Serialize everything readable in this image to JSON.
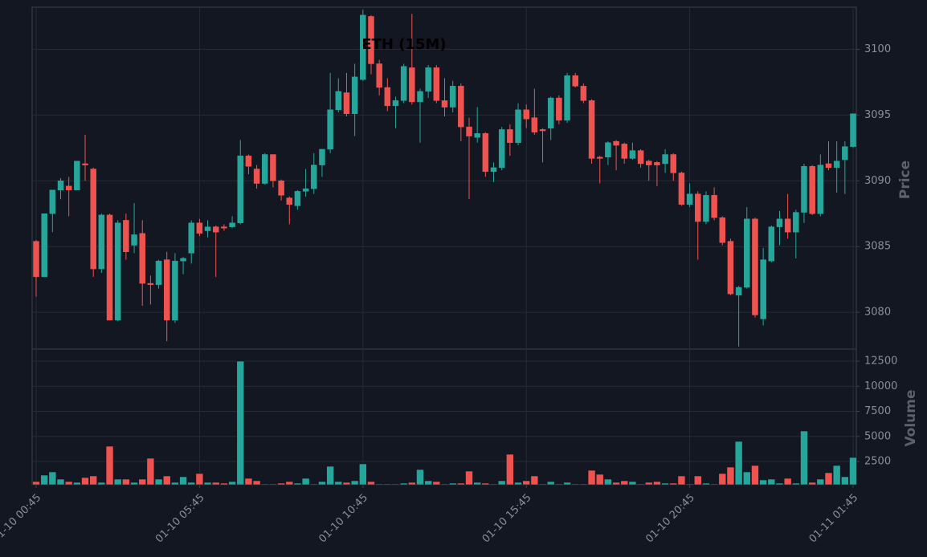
{
  "chart_data": {
    "type": "candlestick",
    "title": "ETH (15M)",
    "ylabel": "Price",
    "categories": [
      "01-10 00:45",
      null,
      null,
      null,
      null,
      null,
      null,
      null,
      null,
      null,
      null,
      null,
      null,
      null,
      null,
      null,
      null,
      null,
      null,
      null,
      "01-10 05:45",
      null,
      null,
      null,
      null,
      null,
      null,
      null,
      null,
      null,
      null,
      null,
      null,
      null,
      null,
      null,
      null,
      null,
      null,
      null,
      "01-10 10:45",
      null,
      null,
      null,
      null,
      null,
      null,
      null,
      null,
      null,
      null,
      null,
      null,
      null,
      null,
      null,
      null,
      null,
      null,
      null,
      "01-10 15:45",
      null,
      null,
      null,
      null,
      null,
      null,
      null,
      null,
      null,
      null,
      null,
      null,
      null,
      null,
      null,
      null,
      null,
      null,
      null,
      "01-10 20:45",
      null,
      null,
      null,
      null,
      null,
      null,
      null,
      null,
      null,
      null,
      null,
      null,
      null,
      null,
      null,
      null,
      null,
      null,
      null,
      "01-11 01:45"
    ],
    "open": [
      3085.4,
      3082.7,
      3087.5,
      3089.3,
      3089.6,
      3089.3,
      3091.3,
      3090.9,
      3083.3,
      3087.4,
      3079.4,
      3087.0,
      3085.1,
      3086.0,
      3082.2,
      3082.1,
      3084.0,
      3079.4,
      3083.9,
      3084.5,
      3086.8,
      3086.2,
      3086.5,
      3086.5,
      3086.5,
      3086.8,
      3091.9,
      3090.9,
      3089.8,
      3092.0,
      3090.0,
      3088.7,
      3088.1,
      3089.2,
      3089.4,
      3091.2,
      3092.4,
      3095.4,
      3096.7,
      3095.1,
      3097.7,
      3102.5,
      3098.9,
      3097.1,
      3095.7,
      3096.1,
      3098.6,
      3096.0,
      3096.8,
      3098.6,
      3096.1,
      3095.6,
      3097.2,
      3094.1,
      3093.3,
      3093.6,
      3090.7,
      3091.0,
      3093.9,
      3092.9,
      3095.4,
      3094.8,
      3093.9,
      3094.0,
      3096.3,
      3094.6,
      3098.0,
      3097.2,
      3096.1,
      3091.8,
      3091.8,
      3093.0,
      3092.8,
      3091.7,
      3092.3,
      3091.5,
      3091.4,
      3091.3,
      3092.0,
      3090.6,
      3088.2,
      3089.0,
      3086.9,
      3088.9,
      3087.2,
      3085.4,
      3081.3,
      3081.9,
      3087.1,
      3079.5,
      3083.9,
      3086.5,
      3087.1,
      3086.1,
      3087.6,
      3091.1,
      3087.5,
      3091.3,
      3091.0,
      3091.6,
      3092.6
    ],
    "high": [
      3085.5,
      3087.5,
      3089.3,
      3090.2,
      3090.3,
      3091.5,
      3093.5,
      3091.0,
      3087.5,
      3087.5,
      3087.0,
      3087.5,
      3088.3,
      3087.0,
      3082.8,
      3084.0,
      3084.6,
      3084.5,
      3084.2,
      3087.0,
      3087.1,
      3087.0,
      3086.6,
      3086.7,
      3087.3,
      3093.1,
      3092.0,
      3091.2,
      3092.1,
      3092.0,
      3090.1,
      3088.8,
      3089.3,
      3090.9,
      3092.1,
      3092.4,
      3098.2,
      3097.8,
      3098.2,
      3098.9,
      3103.0,
      3102.6,
      3099.2,
      3097.8,
      3096.4,
      3098.9,
      3102.7,
      3097.0,
      3098.8,
      3098.8,
      3097.8,
      3097.6,
      3097.4,
      3094.8,
      3095.6,
      3093.7,
      3091.4,
      3094.1,
      3094.3,
      3095.9,
      3095.8,
      3097.0,
      3094.0,
      3096.4,
      3096.5,
      3098.2,
      3098.2,
      3097.4,
      3096.2,
      3091.9,
      3093.0,
      3093.1,
      3092.9,
      3092.9,
      3092.4,
      3091.6,
      3091.5,
      3092.4,
      3092.1,
      3090.7,
      3089.8,
      3089.2,
      3089.2,
      3089.5,
      3087.3,
      3085.6,
      3082.0,
      3088.0,
      3087.2,
      3084.9,
      3086.6,
      3087.7,
      3089.0,
      3087.8,
      3091.3,
      3091.2,
      3092.0,
      3093.0,
      3093.0,
      3093.0,
      3095.1
    ],
    "low": [
      3081.2,
      3082.7,
      3086.1,
      3088.6,
      3087.3,
      3089.3,
      3090.0,
      3082.7,
      3083.0,
      3079.4,
      3079.3,
      3084.0,
      3084.5,
      3080.5,
      3080.6,
      3081.8,
      3077.8,
      3079.2,
      3082.9,
      3083.7,
      3085.8,
      3085.7,
      3082.7,
      3086.2,
      3086.4,
      3086.7,
      3090.5,
      3089.4,
      3089.7,
      3089.5,
      3088.5,
      3086.7,
      3087.8,
      3088.8,
      3089.0,
      3090.3,
      3092.1,
      3095.2,
      3094.9,
      3093.4,
      3097.6,
      3098.1,
      3096.5,
      3095.3,
      3094.0,
      3095.9,
      3095.8,
      3092.9,
      3096.3,
      3095.9,
      3094.9,
      3095.2,
      3093.0,
      3088.6,
      3092.9,
      3090.3,
      3089.9,
      3090.8,
      3091.9,
      3092.7,
      3094.0,
      3093.5,
      3091.4,
      3093.1,
      3094.3,
      3094.4,
      3097.1,
      3095.9,
      3091.3,
      3089.8,
      3091.2,
      3090.8,
      3091.3,
      3091.6,
      3091.0,
      3090.0,
      3089.6,
      3090.6,
      3090.0,
      3088.1,
      3088.0,
      3084.0,
      3086.7,
      3087.0,
      3085.1,
      3081.3,
      3077.4,
      3081.8,
      3079.6,
      3079.0,
      3083.8,
      3085.1,
      3085.6,
      3084.1,
      3086.8,
      3087.4,
      3087.3,
      3090.8,
      3089.1,
      3089.0,
      3092.5
    ],
    "close": [
      3082.7,
      3087.5,
      3089.3,
      3090.0,
      3089.3,
      3091.5,
      3091.2,
      3083.3,
      3087.4,
      3079.4,
      3086.8,
      3084.6,
      3085.9,
      3082.2,
      3082.1,
      3083.9,
      3079.4,
      3083.9,
      3084.1,
      3086.8,
      3086.0,
      3086.5,
      3086.1,
      3086.4,
      3086.8,
      3091.9,
      3091.1,
      3089.8,
      3092.0,
      3090.0,
      3088.9,
      3088.2,
      3089.2,
      3089.4,
      3091.2,
      3092.4,
      3095.4,
      3096.8,
      3095.1,
      3097.9,
      3102.6,
      3098.9,
      3097.1,
      3095.7,
      3096.1,
      3098.7,
      3096.0,
      3096.8,
      3098.6,
      3096.1,
      3095.6,
      3097.2,
      3094.1,
      3093.4,
      3093.6,
      3090.7,
      3091.0,
      3093.9,
      3092.9,
      3095.4,
      3094.7,
      3093.7,
      3093.8,
      3096.3,
      3094.6,
      3098.0,
      3097.2,
      3096.1,
      3091.7,
      3091.7,
      3092.9,
      3092.7,
      3091.7,
      3092.3,
      3091.3,
      3091.2,
      3091.2,
      3092.0,
      3090.6,
      3088.2,
      3089.0,
      3086.9,
      3088.9,
      3087.2,
      3085.3,
      3081.4,
      3081.9,
      3087.1,
      3079.8,
      3084.0,
      3086.5,
      3087.1,
      3086.1,
      3087.6,
      3091.1,
      3087.5,
      3091.2,
      3091.0,
      3091.5,
      3092.6,
      3095.1
    ],
    "ylim": [
      3077.2,
      3103.2
    ],
    "yticks": [
      3080,
      3085,
      3090,
      3095,
      3100
    ],
    "volume": {
      "ylabel": "Volume",
      "ylim": [
        180,
        13700
      ],
      "yticks": [
        2500,
        5000,
        7500,
        10000,
        12500
      ],
      "values": [
        500,
        1140,
        1460,
        740,
        500,
        420,
        900,
        1060,
        420,
        4020,
        740,
        740,
        420,
        740,
        2820,
        740,
        1060,
        420,
        980,
        420,
        1300,
        420,
        420,
        340,
        500,
        12500,
        820,
        580,
        260,
        260,
        340,
        500,
        340,
        820,
        260,
        500,
        2020,
        500,
        420,
        580,
        2260,
        500,
        260,
        260,
        260,
        340,
        420,
        1700,
        580,
        500,
        260,
        340,
        340,
        1540,
        420,
        340,
        260,
        580,
        3220,
        420,
        580,
        1060,
        260,
        500,
        260,
        420,
        260,
        260,
        1620,
        1220,
        740,
        420,
        580,
        500,
        260,
        420,
        500,
        340,
        340,
        1060,
        260,
        1060,
        340,
        260,
        1300,
        1940,
        4500,
        1460,
        2100,
        660,
        740,
        340,
        820,
        340,
        5540,
        420,
        740,
        1380,
        2100,
        980,
        2900
      ]
    },
    "colors": {
      "up": "#26a69a",
      "down": "#ef5350"
    },
    "grid": true
  }
}
